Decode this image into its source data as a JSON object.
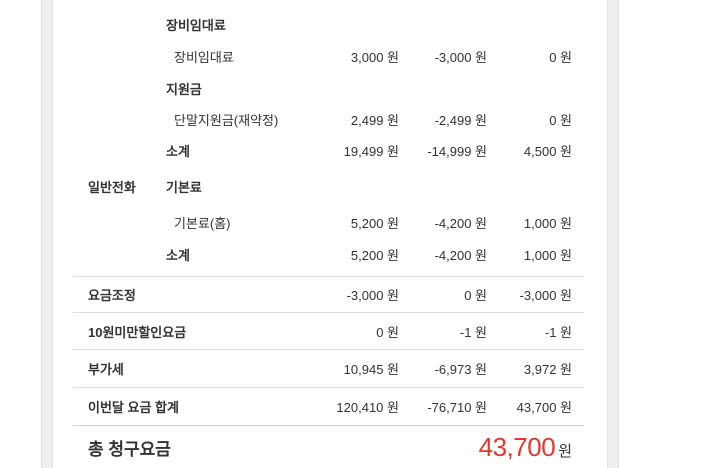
{
  "colors": {
    "total_red": "#e8352c",
    "divider": "#dedede",
    "text": "#333333",
    "gutter_gray": "#efefef"
  },
  "bill_table": {
    "rows": [
      {
        "group": "장비임대료"
      },
      {
        "item": "장비임대료",
        "charge": "3,000 원",
        "discount": "-3,000 원",
        "amount": "0 원"
      },
      {
        "group": "지원금"
      },
      {
        "item": "단말지원금(재약정)",
        "charge": "2,499 원",
        "discount": "-2,499 원",
        "amount": "0 원"
      },
      {
        "subtotal": "소계",
        "charge": "19,499 원",
        "discount": "-14,999 원",
        "amount": "4,500 원"
      },
      {
        "service": "일반전화",
        "group": "기본료"
      },
      {
        "item": "기본료(홈)",
        "charge": "5,200 원",
        "discount": "-4,200 원",
        "amount": "1,000 원"
      },
      {
        "subtotal": "소계",
        "charge": "5,200 원",
        "discount": "-4,200 원",
        "amount": "1,000 원"
      },
      {
        "summary": "요금조정",
        "charge": "-3,000 원",
        "discount": "0 원",
        "amount": "-3,000 원"
      },
      {
        "summary": "10원미만할인요금",
        "charge": "0 원",
        "discount": "-1 원",
        "amount": "-1 원"
      },
      {
        "summary": "부가세",
        "charge": "10,945 원",
        "discount": "-6,973 원",
        "amount": "3,972 원"
      },
      {
        "summary": "이번달 요금 합계",
        "charge": "120,410 원",
        "discount": "-76,710 원",
        "amount": "43,700 원"
      }
    ],
    "total": {
      "label": "총 청구요금",
      "amount": "43,700",
      "currency": "원"
    }
  }
}
